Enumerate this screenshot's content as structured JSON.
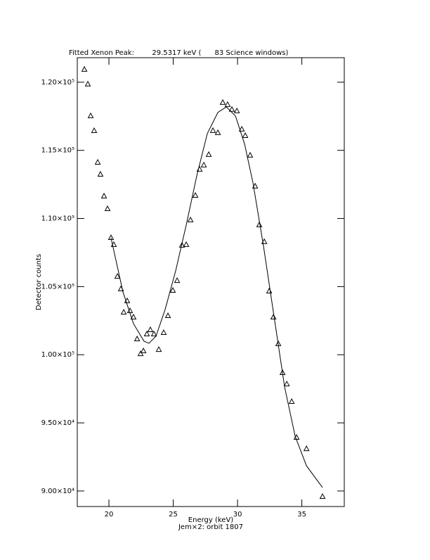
{
  "chart_data": {
    "type": "scatter",
    "title": "Fitted Xenon Peak:        29.5317 keV (      83 Science windows)",
    "x_label": "Energy (keV)",
    "subtitle": "Jem×2: orbit 1807",
    "y_label": "Detector counts",
    "xlim": [
      17.54,
      38.3
    ],
    "ylim": [
      88860,
      121800
    ],
    "xticks": [
      20,
      25,
      30,
      35
    ],
    "yticks": [
      {
        "value": 90000,
        "label": "9.00×10⁴"
      },
      {
        "value": 95000,
        "label": "9.50×10⁴"
      },
      {
        "value": 100000,
        "label": "1.00×10⁵"
      },
      {
        "value": 105000,
        "label": "1.05×10⁵"
      },
      {
        "value": 110000,
        "label": "1.10×10⁵"
      },
      {
        "value": 115000,
        "label": "1.15×10⁵"
      },
      {
        "value": 120000,
        "label": "1.20×10⁵"
      }
    ],
    "series": [
      {
        "type": "scatter",
        "color": "#000000",
        "x": [
          18.09,
          18.36,
          18.58,
          18.85,
          19.13,
          19.34,
          19.62,
          19.89,
          20.16,
          20.38,
          20.66,
          20.93,
          21.15,
          21.42,
          21.64,
          21.91,
          22.19,
          22.46,
          22.68,
          22.95,
          23.22,
          23.5,
          23.88,
          24.26,
          24.59,
          24.97,
          25.3,
          25.68,
          26.01,
          26.34,
          26.72,
          27.05,
          27.38,
          27.76,
          28.09,
          28.47,
          28.85,
          29.23,
          29.56,
          29.95,
          30.33,
          30.6,
          30.98,
          31.37,
          31.69,
          32.08,
          32.46,
          32.79,
          33.17,
          33.5,
          33.83,
          34.21,
          34.59,
          35.36,
          36.61
        ],
        "values": [
          120930,
          119850,
          117520,
          116430,
          114110,
          113230,
          111630,
          110700,
          108580,
          108070,
          105740,
          104820,
          103110,
          103940,
          103210,
          102750,
          101150,
          100060,
          100270,
          101510,
          101820,
          101510,
          100370,
          101610,
          102850,
          104710,
          105430,
          108020,
          108070,
          109880,
          111680,
          113600,
          113910,
          114680,
          116440,
          116280,
          118500,
          118350,
          117990,
          117880,
          116540,
          116070,
          114630,
          112360,
          109520,
          108280,
          104660,
          102750,
          100790,
          98670,
          97840,
          96550,
          93920,
          93090,
          89580
        ]
      },
      {
        "type": "line",
        "color": "#000000",
        "x": [
          20.16,
          21.09,
          21.91,
          22.73,
          23.11,
          23.66,
          24.37,
          25.19,
          26.01,
          26.83,
          27.65,
          28.47,
          29.13,
          29.84,
          30.55,
          31.2,
          32.02,
          32.84,
          33.66,
          34.48,
          35.36,
          36.61
        ],
        "values": [
          108580,
          104610,
          102280,
          100990,
          100840,
          101360,
          103320,
          106160,
          109520,
          113130,
          116230,
          117780,
          118190,
          117520,
          115460,
          112620,
          107970,
          102800,
          97640,
          94020,
          91850,
          90250
        ]
      }
    ]
  }
}
